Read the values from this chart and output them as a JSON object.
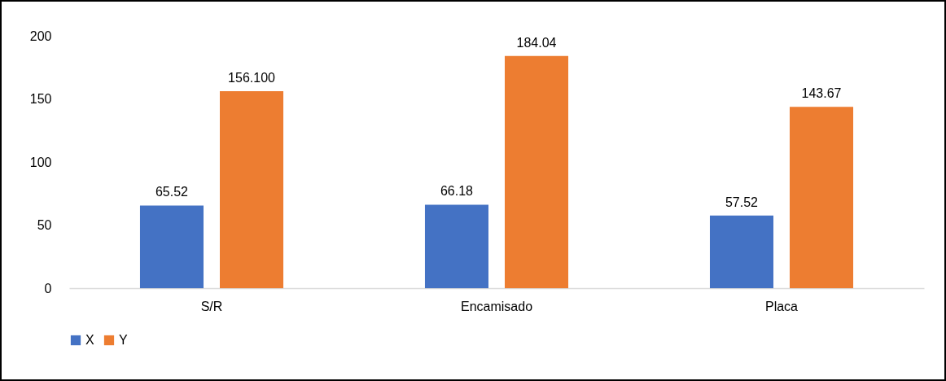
{
  "chart_data": {
    "type": "bar",
    "categories": [
      "S/R",
      "Encamisado",
      "Placa"
    ],
    "series": [
      {
        "name": "X",
        "color": "#4472c4",
        "values": [
          65.52,
          66.18,
          57.52
        ],
        "value_labels": [
          "65.52",
          "66.18",
          "57.52"
        ]
      },
      {
        "name": "Y",
        "color": "#ed7d31",
        "values": [
          156.1,
          184.04,
          143.67
        ],
        "value_labels": [
          "156.100",
          "184.04",
          "143.67"
        ]
      }
    ],
    "ylim": [
      0,
      200
    ],
    "yticks": [
      0,
      50,
      100,
      150,
      200
    ],
    "legend": "bottom"
  }
}
